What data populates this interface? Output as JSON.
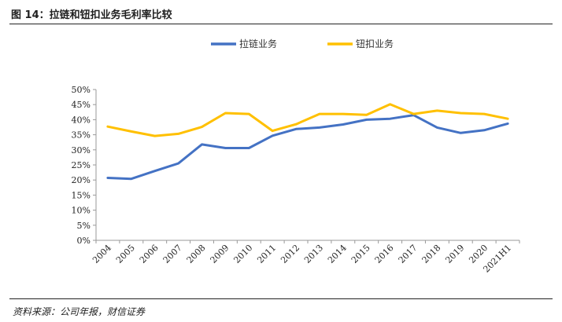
{
  "figure": {
    "title": "图 14：拉链和钮扣业务毛利率比较",
    "source": "资料来源：公司年报，财信证券"
  },
  "colors": {
    "zipper": "#4472C4",
    "button": "#FFC000"
  },
  "chart_data": {
    "type": "line",
    "title": "",
    "xlabel": "",
    "ylabel": "",
    "categories": [
      "2004",
      "2005",
      "2006",
      "2007",
      "2008",
      "2009",
      "2010",
      "2011",
      "2012",
      "2013",
      "2014",
      "2015",
      "2016",
      "2017",
      "2018",
      "2019",
      "2020",
      "2021H1"
    ],
    "yticks": [
      "0%",
      "5%",
      "10%",
      "15%",
      "20%",
      "25%",
      "30%",
      "35%",
      "40%",
      "45%",
      "50%"
    ],
    "ylim": [
      0,
      50
    ],
    "y_unit": "%",
    "grid": false,
    "legend_position": "top",
    "series": [
      {
        "name": "拉链业务",
        "values": [
          20.7,
          20.4,
          23.0,
          25.5,
          31.8,
          30.6,
          30.6,
          34.7,
          36.9,
          37.4,
          38.4,
          40.0,
          40.3,
          41.5,
          37.4,
          35.6,
          36.5,
          38.7
        ]
      },
      {
        "name": "钮扣业务",
        "values": [
          37.7,
          36.1,
          34.6,
          35.3,
          37.6,
          42.2,
          41.9,
          36.3,
          38.5,
          41.9,
          41.9,
          41.6,
          45.1,
          41.9,
          43.0,
          42.2,
          41.9,
          40.3
        ]
      }
    ]
  }
}
